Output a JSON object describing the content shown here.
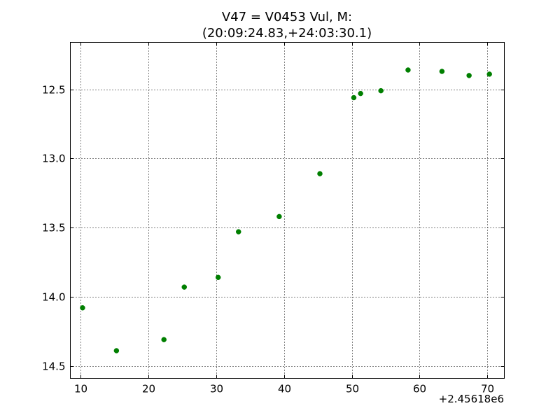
{
  "chart_data": {
    "type": "scatter",
    "title_line1": "V47 = V0453 Vul, M:",
    "title_line2": "(20:09:24.83,+24:03:30.1)",
    "xlabel": "",
    "ylabel": "",
    "x_offset_label": "+2.45618e6",
    "xlim": [
      8.5,
      72.5
    ],
    "ylim": [
      14.59,
      12.16
    ],
    "y_inverted": true,
    "grid": true,
    "marker_color": "#007f00",
    "x_ticks": [
      10,
      20,
      30,
      40,
      50,
      60,
      70
    ],
    "x_tick_labels": [
      "10",
      "20",
      "30",
      "40",
      "50",
      "60",
      "70"
    ],
    "y_ticks": [
      12.5,
      13.0,
      13.5,
      14.0,
      14.5
    ],
    "y_tick_labels": [
      "12.5",
      "13.0",
      "13.5",
      "14.0",
      "14.5"
    ],
    "points": [
      {
        "x": 10.3,
        "y": 14.08
      },
      {
        "x": 15.3,
        "y": 14.39
      },
      {
        "x": 22.3,
        "y": 14.31
      },
      {
        "x": 25.3,
        "y": 13.93
      },
      {
        "x": 30.3,
        "y": 13.86
      },
      {
        "x": 33.3,
        "y": 13.53
      },
      {
        "x": 39.3,
        "y": 13.42
      },
      {
        "x": 45.3,
        "y": 13.11
      },
      {
        "x": 50.3,
        "y": 12.56
      },
      {
        "x": 51.3,
        "y": 12.53
      },
      {
        "x": 54.3,
        "y": 12.51
      },
      {
        "x": 58.3,
        "y": 12.36
      },
      {
        "x": 63.3,
        "y": 12.37
      },
      {
        "x": 67.3,
        "y": 12.4
      },
      {
        "x": 70.3,
        "y": 12.39
      }
    ]
  }
}
